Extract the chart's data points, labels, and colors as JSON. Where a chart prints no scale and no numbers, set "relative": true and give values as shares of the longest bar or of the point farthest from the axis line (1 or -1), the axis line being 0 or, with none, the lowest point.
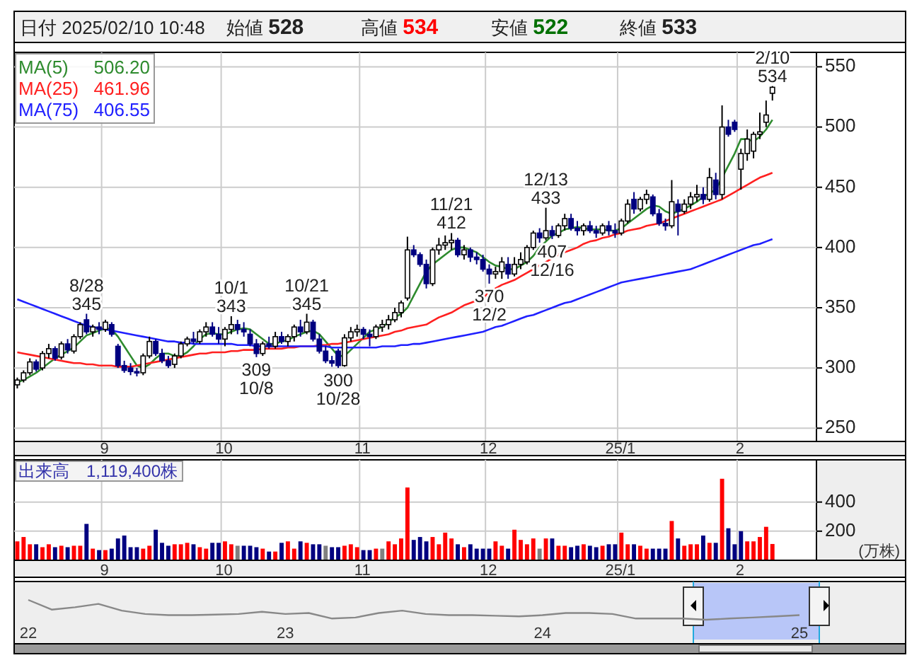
{
  "chart_data": [
    {
      "type": "candlestick",
      "title": "日付 2025/02/10 10:48",
      "annotations": [
        "始値 528",
        "高値 534",
        "安値 522",
        "終値 533",
        "506.20",
        "461.96",
        "406.55",
        {
          "text": "8/28\n345",
          "y": 345
        },
        {
          "text": "10/1\n343",
          "y": 343
        },
        {
          "text": "309\n10/8",
          "y": 309
        },
        {
          "text": "10/21\n345",
          "y": 345
        },
        {
          "text": "300\n10/28",
          "y": 300
        },
        {
          "text": "11/21\n412",
          "y": 412
        },
        {
          "text": "370\n12/2",
          "y": 370
        },
        {
          "text": "12/13\n433",
          "y": 433
        },
        {
          "text": "407\n12/16",
          "y": 407
        },
        {
          "text": "2/10\n534",
          "y": 534
        }
      ],
      "categories": [
        null,
        null,
        null,
        null,
        null,
        null,
        null,
        null,
        null,
        null,
        null,
        null,
        null,
        null,
        "9",
        null,
        null,
        null,
        null,
        null,
        null,
        null,
        null,
        null,
        null,
        null,
        null,
        null,
        null,
        null,
        null,
        null,
        null,
        "10",
        null,
        null,
        null,
        null,
        null,
        null,
        null,
        null,
        null,
        null,
        null,
        null,
        null,
        null,
        null,
        null,
        null,
        null,
        null,
        null,
        null,
        "11",
        null,
        null,
        null,
        null,
        null,
        null,
        null,
        null,
        null,
        null,
        null,
        null,
        null,
        null,
        null,
        null,
        null,
        null,
        null,
        "12",
        null,
        null,
        null,
        null,
        null,
        null,
        null,
        null,
        null,
        null,
        null,
        null,
        null,
        null,
        null,
        null,
        null,
        null,
        null,
        null,
        "25/1",
        null,
        null,
        null,
        null,
        null,
        null,
        null,
        null,
        null,
        null,
        null,
        null,
        null,
        null,
        null,
        null,
        null,
        null,
        "2",
        null,
        null,
        null,
        null,
        null
      ],
      "ohlc": [
        [
          286,
          292,
          283,
          290
        ],
        [
          290,
          298,
          288,
          296
        ],
        [
          296,
          308,
          294,
          305
        ],
        [
          305,
          307,
          297,
          299
        ],
        [
          300,
          314,
          298,
          312
        ],
        [
          312,
          320,
          308,
          316
        ],
        [
          316,
          318,
          306,
          308
        ],
        [
          309,
          322,
          307,
          320
        ],
        [
          320,
          324,
          312,
          315
        ],
        [
          314,
          328,
          312,
          326
        ],
        [
          326,
          338,
          324,
          336
        ],
        [
          340,
          345,
          328,
          330
        ],
        [
          330,
          336,
          326,
          334
        ],
        [
          334,
          338,
          328,
          332
        ],
        [
          332,
          340,
          330,
          338
        ],
        [
          336,
          338,
          326,
          328
        ],
        [
          318,
          320,
          300,
          302
        ],
        [
          302,
          306,
          296,
          298
        ],
        [
          300,
          304,
          294,
          297
        ],
        [
          297,
          300,
          293,
          296
        ],
        [
          296,
          312,
          294,
          310
        ],
        [
          310,
          326,
          308,
          322
        ],
        [
          322,
          324,
          310,
          312
        ],
        [
          312,
          316,
          304,
          306
        ],
        [
          306,
          310,
          300,
          302
        ],
        [
          303,
          312,
          300,
          310
        ],
        [
          310,
          322,
          308,
          320
        ],
        [
          320,
          326,
          318,
          324
        ],
        [
          324,
          330,
          320,
          322
        ],
        [
          322,
          332,
          320,
          330
        ],
        [
          330,
          338,
          326,
          334
        ],
        [
          334,
          338,
          326,
          328
        ],
        [
          328,
          334,
          320,
          324
        ],
        [
          324,
          334,
          318,
          332
        ],
        [
          332,
          343,
          328,
          336
        ],
        [
          336,
          340,
          328,
          332
        ],
        [
          332,
          338,
          326,
          330
        ],
        [
          328,
          332,
          318,
          320
        ],
        [
          320,
          324,
          309,
          312
        ],
        [
          312,
          322,
          310,
          320
        ],
        [
          320,
          326,
          316,
          318
        ],
        [
          318,
          330,
          316,
          326
        ],
        [
          326,
          330,
          320,
          322
        ],
        [
          322,
          328,
          318,
          326
        ],
        [
          326,
          336,
          322,
          334
        ],
        [
          334,
          340,
          326,
          330
        ],
        [
          330,
          345,
          328,
          338
        ],
        [
          338,
          340,
          322,
          324
        ],
        [
          324,
          328,
          312,
          314
        ],
        [
          314,
          318,
          304,
          306
        ],
        [
          306,
          310,
          301,
          304
        ],
        [
          314,
          316,
          300,
          302
        ],
        [
          302,
          328,
          301,
          325
        ],
        [
          325,
          334,
          322,
          330
        ],
        [
          330,
          336,
          326,
          332
        ],
        [
          332,
          334,
          324,
          328
        ],
        [
          328,
          332,
          318,
          326
        ],
        [
          326,
          336,
          324,
          334
        ],
        [
          334,
          340,
          330,
          336
        ],
        [
          336,
          344,
          332,
          340
        ],
        [
          340,
          350,
          338,
          346
        ],
        [
          346,
          356,
          342,
          354
        ],
        [
          358,
          409,
          356,
          398
        ],
        [
          398,
          402,
          392,
          394
        ],
        [
          394,
          396,
          384,
          386
        ],
        [
          386,
          390,
          366,
          370
        ],
        [
          370,
          400,
          368,
          398
        ],
        [
          398,
          408,
          394,
          402
        ],
        [
          402,
          410,
          398,
          404
        ],
        [
          404,
          412,
          398,
          406
        ],
        [
          406,
          408,
          392,
          394
        ],
        [
          394,
          402,
          390,
          398
        ],
        [
          398,
          400,
          388,
          392
        ],
        [
          392,
          396,
          386,
          390
        ],
        [
          390,
          394,
          380,
          382
        ],
        [
          382,
          386,
          370,
          378
        ],
        [
          378,
          384,
          374,
          380
        ],
        [
          380,
          392,
          374,
          388
        ],
        [
          386,
          392,
          374,
          378
        ],
        [
          378,
          392,
          376,
          386
        ],
        [
          386,
          396,
          382,
          390
        ],
        [
          388,
          402,
          386,
          400
        ],
        [
          400,
          414,
          398,
          412
        ],
        [
          412,
          416,
          404,
          408
        ],
        [
          408,
          433,
          406,
          414
        ],
        [
          414,
          418,
          407,
          410
        ],
        [
          410,
          420,
          408,
          418
        ],
        [
          418,
          428,
          414,
          424
        ],
        [
          424,
          428,
          414,
          416
        ],
        [
          416,
          422,
          410,
          414
        ],
        [
          414,
          420,
          410,
          418
        ],
        [
          418,
          422,
          412,
          414
        ],
        [
          414,
          418,
          408,
          412
        ],
        [
          412,
          420,
          410,
          418
        ],
        [
          418,
          422,
          410,
          414
        ],
        [
          414,
          420,
          408,
          412
        ],
        [
          412,
          424,
          410,
          422
        ],
        [
          422,
          440,
          420,
          436
        ],
        [
          440,
          446,
          428,
          432
        ],
        [
          432,
          442,
          430,
          440
        ],
        [
          440,
          448,
          436,
          444
        ],
        [
          442,
          444,
          426,
          428
        ],
        [
          428,
          432,
          418,
          420
        ],
        [
          420,
          424,
          414,
          418
        ],
        [
          418,
          456,
          416,
          438
        ],
        [
          436,
          440,
          410,
          430
        ],
        [
          430,
          440,
          428,
          436
        ],
        [
          436,
          446,
          432,
          442
        ],
        [
          442,
          452,
          438,
          444
        ],
        [
          444,
          450,
          436,
          440
        ],
        [
          440,
          466,
          438,
          458
        ],
        [
          456,
          462,
          440,
          444
        ],
        [
          444,
          518,
          440,
          500
        ],
        [
          500,
          506,
          492,
          494
        ],
        [
          504,
          506,
          496,
          498
        ],
        [
          465,
          482,
          448,
          478
        ],
        [
          478,
          498,
          472,
          490
        ],
        [
          480,
          496,
          474,
          494
        ],
        [
          494,
          512,
          490,
          496
        ],
        [
          504,
          522,
          500,
          510
        ],
        [
          528,
          534,
          522,
          533
        ]
      ],
      "series": [
        {
          "type": "line",
          "name": "MA(5)",
          "color": "#2e8b2e",
          "values": [
            288,
            290,
            293,
            296,
            300,
            304,
            308,
            311,
            314,
            317,
            322,
            327,
            329,
            331,
            333,
            332,
            326,
            318,
            310,
            302,
            300,
            303,
            308,
            312,
            312,
            310,
            310,
            313,
            318,
            324,
            328,
            329,
            328,
            328,
            330,
            332,
            333,
            332,
            328,
            324,
            320,
            320,
            322,
            323,
            326,
            328,
            330,
            331,
            328,
            322,
            316,
            310,
            310,
            315,
            320,
            325,
            330,
            332,
            334,
            338,
            342,
            345,
            350,
            360,
            370,
            380,
            386,
            390,
            394,
            398,
            400,
            400,
            398,
            396,
            392,
            388,
            385,
            384,
            382,
            382,
            385,
            388,
            393,
            400,
            405,
            410,
            412,
            415,
            416,
            417,
            416,
            415,
            415,
            415,
            414,
            414,
            416,
            420,
            424,
            428,
            432,
            435,
            434,
            430,
            428,
            430,
            432,
            435,
            438,
            442,
            445,
            448,
            458,
            468,
            478,
            490,
            490,
            488,
            492,
            498,
            506
          ]
        },
        {
          "type": "line",
          "name": "MA(25)",
          "color": "#ff2020",
          "values": [
            313,
            312,
            311,
            310,
            309,
            308,
            307,
            306,
            305,
            304,
            304,
            303,
            303,
            302,
            302,
            302,
            301,
            301,
            301,
            302,
            303,
            304,
            305,
            306,
            307,
            308,
            309,
            310,
            311,
            312,
            312,
            313,
            313,
            313,
            314,
            314,
            315,
            315,
            315,
            316,
            316,
            316,
            316,
            317,
            317,
            318,
            318,
            318,
            319,
            319,
            320,
            320,
            321,
            322,
            323,
            324,
            325,
            326,
            327,
            328,
            330,
            331,
            333,
            334,
            335,
            336,
            339,
            342,
            344,
            346,
            349,
            352,
            354,
            356,
            358,
            363,
            366,
            369,
            371,
            373,
            376,
            379,
            382,
            385,
            388,
            391,
            394,
            396,
            398,
            400,
            403,
            405,
            406,
            408,
            409,
            411,
            412,
            414,
            415,
            416,
            418,
            419,
            420,
            422,
            424,
            426,
            428,
            430,
            432,
            434,
            436,
            438,
            440,
            443,
            446,
            449,
            452,
            455,
            458,
            460,
            462
          ]
        },
        {
          "type": "line",
          "name": "MA(75)",
          "color": "#2020ff",
          "values": [
            357,
            355,
            353,
            351,
            349,
            347,
            345,
            343,
            341,
            339,
            337,
            335,
            334,
            333,
            332,
            331,
            330,
            329,
            328,
            327,
            326,
            325,
            324,
            323,
            322,
            322,
            321,
            321,
            320,
            320,
            320,
            320,
            320,
            320,
            320,
            319,
            319,
            319,
            318,
            318,
            318,
            318,
            318,
            318,
            318,
            318,
            318,
            318,
            318,
            318,
            317,
            317,
            317,
            317,
            317,
            317,
            317,
            317,
            318,
            318,
            318,
            319,
            319,
            320,
            320,
            321,
            322,
            323,
            324,
            325,
            326,
            327,
            328,
            329,
            330,
            332,
            334,
            335,
            337,
            339,
            341,
            343,
            344,
            346,
            348,
            350,
            352,
            354,
            355,
            357,
            359,
            361,
            363,
            365,
            367,
            369,
            371,
            372,
            373,
            374,
            375,
            376,
            377,
            378,
            379,
            380,
            381,
            382,
            384,
            386,
            388,
            390,
            392,
            394,
            396,
            398,
            400,
            402,
            403,
            405,
            407
          ]
        }
      ],
      "ylim": [
        239,
        562
      ],
      "yticks": [
        250,
        300,
        350,
        400,
        450,
        500,
        550
      ],
      "grid": true,
      "legend": "top left"
    },
    {
      "type": "bar",
      "title": "出来高　1,119,400株",
      "ylabel": "(万株)",
      "categories": [
        null,
        null,
        null,
        null,
        null,
        null,
        null,
        null,
        null,
        null,
        null,
        null,
        null,
        null,
        "9",
        null,
        null,
        null,
        null,
        null,
        null,
        null,
        null,
        null,
        null,
        null,
        null,
        null,
        null,
        null,
        null,
        null,
        null,
        "10",
        null,
        null,
        null,
        null,
        null,
        null,
        null,
        null,
        null,
        null,
        null,
        null,
        null,
        null,
        null,
        null,
        null,
        null,
        null,
        null,
        null,
        "11",
        null,
        null,
        null,
        null,
        null,
        null,
        null,
        null,
        null,
        null,
        null,
        null,
        null,
        null,
        null,
        null,
        null,
        null,
        null,
        "12",
        null,
        null,
        null,
        null,
        null,
        null,
        null,
        null,
        null,
        null,
        null,
        null,
        null,
        null,
        null,
        null,
        null,
        null,
        null,
        null,
        "25/1",
        null,
        null,
        null,
        null,
        null,
        null,
        null,
        null,
        null,
        null,
        null,
        null,
        null,
        null,
        null,
        null,
        null,
        null,
        "2",
        null,
        null,
        null,
        null,
        null
      ],
      "values": [
        130,
        160,
        110,
        110,
        90,
        110,
        90,
        100,
        90,
        100,
        100,
        250,
        80,
        70,
        70,
        80,
        150,
        170,
        90,
        90,
        80,
        100,
        210,
        120,
        100,
        110,
        110,
        120,
        110,
        90,
        80,
        120,
        120,
        130,
        110,
        100,
        100,
        100,
        90,
        80,
        60,
        60,
        120,
        130,
        80,
        130,
        120,
        110,
        110,
        100,
        90,
        90,
        100,
        110,
        90,
        70,
        70,
        80,
        80,
        130,
        110,
        150,
        500,
        140,
        160,
        130,
        160,
        110,
        190,
        150,
        110,
        90,
        110,
        80,
        80,
        80,
        130,
        100,
        80,
        210,
        140,
        110,
        150,
        80,
        150,
        150,
        100,
        100,
        90,
        100,
        110,
        100,
        90,
        100,
        110,
        110,
        190,
        110,
        110,
        100,
        80,
        80,
        80,
        80,
        270,
        150,
        100,
        110,
        110,
        170,
        120,
        120,
        560,
        220,
        110,
        200,
        130,
        130,
        160,
        230,
        112
      ],
      "colors": [
        "#ff0000",
        "#ff0000",
        "#ff0000",
        "#000080",
        "#ff0000",
        "#ff0000",
        "#000080",
        "#ff0000",
        "#000080",
        "#ff0000",
        "#ff0000",
        "#000080",
        "#ff0000",
        "#000080",
        "#ff0000",
        "#000080",
        "#000080",
        "#000080",
        "#000080",
        "#000080",
        "#ff0000",
        "#ff0000",
        "#000080",
        "#000080",
        "#000080",
        "#ff0000",
        "#ff0000",
        "#ff0000",
        "#000080",
        "#ff0000",
        "#ff0000",
        "#000080",
        "#000080",
        "#ff0000",
        "#ff0000",
        "#808080",
        "#000080",
        "#000080",
        "#000080",
        "#ff0000",
        "#000080",
        "#ff0000",
        "#000080",
        "#ff0000",
        "#ff0000",
        "#000080",
        "#ff0000",
        "#000080",
        "#000080",
        "#808080",
        "#000080",
        "#000080",
        "#ff0000",
        "#ff0000",
        "#ff0000",
        "#000080",
        "#000080",
        "#ff0000",
        "#808080",
        "#ff0000",
        "#ff0000",
        "#ff0000",
        "#ff0000",
        "#000080",
        "#000080",
        "#000080",
        "#ff0000",
        "#ff0000",
        "#ff0000",
        "#ff0000",
        "#000080",
        "#ff0000",
        "#000080",
        "#000080",
        "#000080",
        "#000080",
        "#ff0000",
        "#ff0000",
        "#000080",
        "#ff0000",
        "#ff0000",
        "#ff0000",
        "#ff0000",
        "#808080",
        "#ff0000",
        "#000080",
        "#ff0000",
        "#ff0000",
        "#000080",
        "#000080",
        "#ff0000",
        "#000080",
        "#000080",
        "#ff0000",
        "#000080",
        "#000080",
        "#ff0000",
        "#ff0000",
        "#000080",
        "#ff0000",
        "#ff0000",
        "#000080",
        "#000080",
        "#000080",
        "#ff0000",
        "#000080",
        "#ff0000",
        "#ff0000",
        "#ff0000",
        "#000080",
        "#ff0000",
        "#000080",
        "#ff0000",
        "#000080",
        "#000080",
        "#000080",
        "#ff0000",
        "#ff0000",
        "#ff0000",
        "#ff0000",
        "#ff0000"
      ],
      "ylim": [
        0,
        690
      ],
      "yticks": [
        200,
        400
      ],
      "grid": true
    },
    {
      "type": "line",
      "relative": true,
      "categories": [
        "22",
        null,
        null,
        null,
        null,
        null,
        null,
        null,
        null,
        null,
        null,
        "23",
        null,
        null,
        null,
        null,
        null,
        null,
        null,
        null,
        null,
        null,
        "24",
        null,
        null,
        null,
        null,
        null,
        null,
        null,
        null,
        null,
        null,
        "25"
      ],
      "series": [
        {
          "color": "#888888",
          "values": [
            1.0,
            0.51,
            0.63,
            0.8,
            0.46,
            0.29,
            0.23,
            0.23,
            0.26,
            0.29,
            0.4,
            0.29,
            0.34,
            0.06,
            0.11,
            0.34,
            0.46,
            0.29,
            0.23,
            0.23,
            0.2,
            0.17,
            0.23,
            0.34,
            0.34,
            0.29,
            0.06,
            0.06,
            0.06,
            0,
            0.06,
            0.11,
            0.17,
            0.23
          ]
        }
      ]
    }
  ]
}
